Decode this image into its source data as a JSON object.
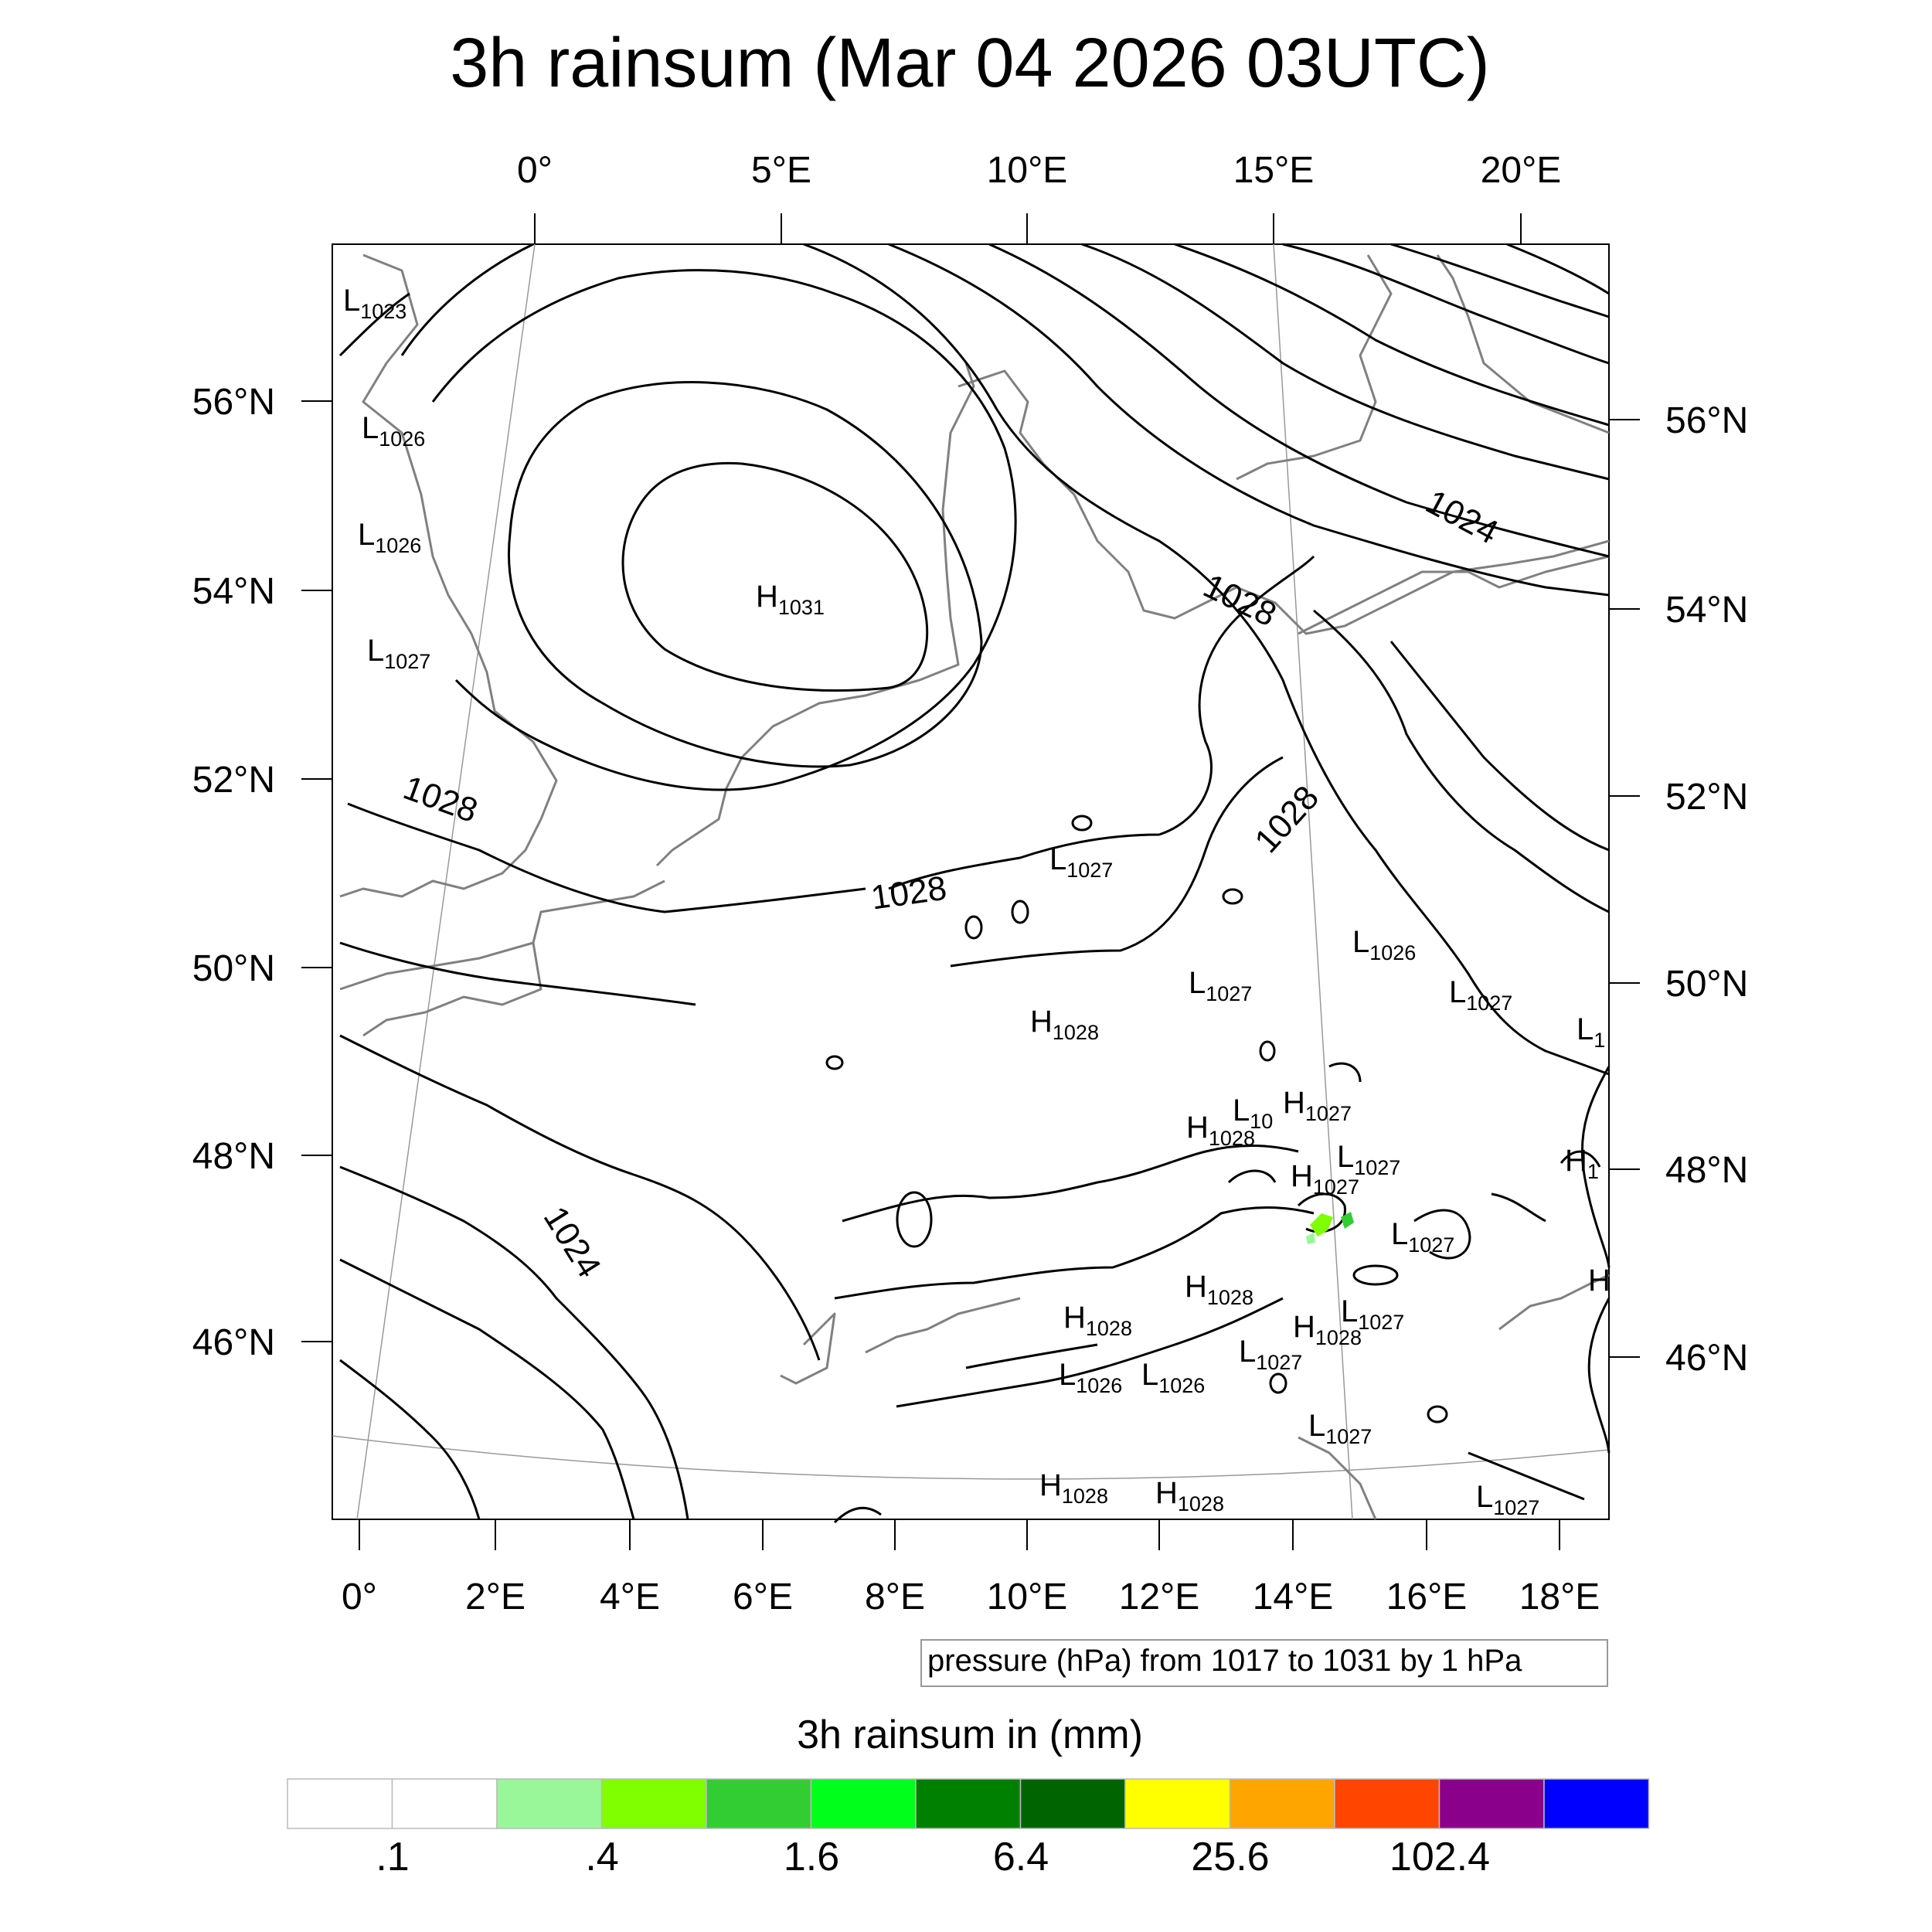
{
  "title": "3h rainsum (Mar 04 2026 03UTC)",
  "axes": {
    "top_lon_labels": [
      "0°",
      "5°E",
      "10°E",
      "15°E",
      "20°E"
    ],
    "bottom_lon_labels": [
      "0°",
      "2°E",
      "4°E",
      "6°E",
      "8°E",
      "10°E",
      "12°E",
      "14°E",
      "16°E",
      "18°E"
    ],
    "left_lat_labels": [
      "56°N",
      "54°N",
      "52°N",
      "50°N",
      "48°N",
      "46°N"
    ],
    "right_lat_labels": [
      "56°N",
      "54°N",
      "52°N",
      "50°N",
      "48°N",
      "46°N"
    ]
  },
  "isobar_labels": [
    "1028",
    "1028",
    "1028",
    "1024",
    "1028",
    "1024"
  ],
  "pressure_centers": [
    {
      "type": "L",
      "value": "1023"
    },
    {
      "type": "L",
      "value": "1026"
    },
    {
      "type": "L",
      "value": "1026"
    },
    {
      "type": "L",
      "value": "1027"
    },
    {
      "type": "H",
      "value": "1031"
    },
    {
      "type": "L",
      "value": "1027"
    },
    {
      "type": "L",
      "value": "1026"
    },
    {
      "type": "L",
      "value": "1027"
    },
    {
      "type": "L",
      "value": "1027"
    },
    {
      "type": "H",
      "value": "1028"
    },
    {
      "type": "L",
      "value": "1"
    },
    {
      "type": "L",
      "value": "10"
    },
    {
      "type": "H",
      "value": "1027"
    },
    {
      "type": "H",
      "value": "1028"
    },
    {
      "type": "L",
      "value": "1027"
    },
    {
      "type": "H",
      "value": "1027"
    },
    {
      "type": "H",
      "value": "1"
    },
    {
      "type": "L",
      "value": "1027"
    },
    {
      "type": "H",
      "value": ""
    },
    {
      "type": "H",
      "value": "1028"
    },
    {
      "type": "L",
      "value": "1027"
    },
    {
      "type": "H",
      "value": "1028"
    },
    {
      "type": "H",
      "value": "1028"
    },
    {
      "type": "L",
      "value": "1027"
    },
    {
      "type": "L",
      "value": "1026"
    },
    {
      "type": "L",
      "value": "1026"
    },
    {
      "type": "L",
      "value": "1027"
    },
    {
      "type": "H",
      "value": "1028"
    },
    {
      "type": "H",
      "value": "1028"
    },
    {
      "type": "L",
      "value": "1027"
    }
  ],
  "contour_info": "pressure (hPa) from 1017 to 1031 by 1 hPa",
  "colorbar": {
    "title": "3h rainsum in (mm)",
    "colors": [
      "#ffffff",
      "#ffffff",
      "#99f799",
      "#7fff00",
      "#32cd32",
      "#00ff1a",
      "#008000",
      "#006400",
      "#ffff00",
      "#ffa500",
      "#ff4500",
      "#8b008b",
      "#0000ff"
    ],
    "tick_labels": [
      ".1",
      ".4",
      "1.6",
      "6.4",
      "25.6",
      "102.4"
    ]
  },
  "colors": {
    "isobar": "#000000",
    "coastline": "#808080",
    "frame": "#000000",
    "rain_light_green": "#7fff00"
  }
}
